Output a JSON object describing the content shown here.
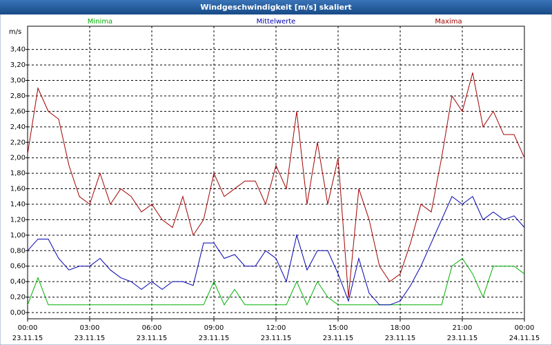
{
  "chart_data": {
    "type": "line",
    "title": "Windgeschwindigkeit [m/s] skaliert",
    "y_label": "m/s",
    "x": [
      0,
      0.5,
      1,
      1.5,
      2,
      2.5,
      3,
      3.5,
      4,
      4.5,
      5,
      5.5,
      6,
      6.5,
      7,
      7.5,
      8,
      8.5,
      9,
      9.5,
      10,
      10.5,
      11,
      11.5,
      12,
      12.5,
      13,
      13.5,
      14,
      14.5,
      15,
      15.5,
      16,
      16.5,
      17,
      17.5,
      18,
      18.5,
      19,
      19.5,
      20,
      20.5,
      21,
      21.5,
      22,
      22.5,
      23,
      23.5,
      24
    ],
    "series": [
      {
        "name": "Minima",
        "color": "#00b000",
        "values": [
          0.1,
          0.45,
          0.1,
          0.1,
          0.1,
          0.1,
          0.1,
          0.1,
          0.1,
          0.1,
          0.1,
          0.1,
          0.1,
          0.1,
          0.1,
          0.1,
          0.1,
          0.1,
          0.4,
          0.1,
          0.3,
          0.1,
          0.1,
          0.1,
          0.1,
          0.1,
          0.4,
          0.1,
          0.4,
          0.2,
          0.1,
          0.1,
          0.1,
          0.1,
          0.1,
          0.1,
          0.1,
          0.1,
          0.1,
          0.1,
          0.1,
          0.6,
          0.7,
          0.5,
          0.2,
          0.6,
          0.6,
          0.6,
          0.5
        ]
      },
      {
        "name": "Mittelwerte",
        "color": "#0000b0",
        "values": [
          0.8,
          0.95,
          0.95,
          0.7,
          0.55,
          0.6,
          0.6,
          0.7,
          0.55,
          0.45,
          0.4,
          0.3,
          0.4,
          0.3,
          0.4,
          0.4,
          0.35,
          0.9,
          0.9,
          0.7,
          0.75,
          0.6,
          0.6,
          0.8,
          0.7,
          0.4,
          1.0,
          0.55,
          0.8,
          0.8,
          0.5,
          0.15,
          0.7,
          0.25,
          0.1,
          0.1,
          0.15,
          0.35,
          0.6,
          0.9,
          1.2,
          1.5,
          1.4,
          1.5,
          1.2,
          1.3,
          1.2,
          1.25,
          1.1
        ]
      },
      {
        "name": "Maxima",
        "color": "#a00000",
        "values": [
          2.05,
          2.9,
          2.6,
          2.5,
          1.9,
          1.5,
          1.4,
          1.8,
          1.4,
          1.6,
          1.5,
          1.3,
          1.4,
          1.2,
          1.1,
          1.5,
          1.0,
          1.2,
          1.8,
          1.5,
          1.6,
          1.7,
          1.7,
          1.4,
          1.9,
          1.6,
          2.6,
          1.4,
          2.2,
          1.4,
          2.0,
          0.2,
          1.6,
          1.2,
          0.6,
          0.4,
          0.5,
          0.9,
          1.4,
          1.3,
          2.0,
          2.8,
          2.6,
          3.1,
          2.4,
          2.6,
          2.3,
          2.3,
          2.0
        ]
      }
    ],
    "xlim": [
      0,
      24
    ],
    "xticks": [
      {
        "value": 0,
        "label": "00:00"
      },
      {
        "value": 3,
        "label": "03:00"
      },
      {
        "value": 6,
        "label": "06:00"
      },
      {
        "value": 9,
        "label": "09:00"
      },
      {
        "value": 12,
        "label": "12:00"
      },
      {
        "value": 15,
        "label": "15:00"
      },
      {
        "value": 18,
        "label": "18:00"
      },
      {
        "value": 21,
        "label": "21:00"
      },
      {
        "value": 24,
        "label": "00:00"
      }
    ],
    "xtick_dates": [
      "23.11.15",
      "23.11.15",
      "23.11.15",
      "23.11.15",
      "23.11.15",
      "23.11.15",
      "23.11.15",
      "23.11.15",
      "24.11.15"
    ],
    "ylim": [
      -0.08,
      3.7
    ],
    "yticks": [
      {
        "value": 0,
        "label": "0,00"
      },
      {
        "value": 0.2,
        "label": "0,20"
      },
      {
        "value": 0.4,
        "label": "0,40"
      },
      {
        "value": 0.6,
        "label": "0,60"
      },
      {
        "value": 0.8,
        "label": "0,80"
      },
      {
        "value": 1.0,
        "label": "1,00"
      },
      {
        "value": 1.2,
        "label": "1,20"
      },
      {
        "value": 1.4,
        "label": "1,40"
      },
      {
        "value": 1.6,
        "label": "1,60"
      },
      {
        "value": 1.8,
        "label": "1,80"
      },
      {
        "value": 2.0,
        "label": "2,00"
      },
      {
        "value": 2.2,
        "label": "2,20"
      },
      {
        "value": 2.4,
        "label": "2,40"
      },
      {
        "value": 2.6,
        "label": "2,60"
      },
      {
        "value": 2.8,
        "label": "2,80"
      },
      {
        "value": 3.0,
        "label": "3,00"
      },
      {
        "value": 3.2,
        "label": "3,20"
      },
      {
        "value": 3.4,
        "label": "3,40"
      }
    ],
    "grid": true
  }
}
